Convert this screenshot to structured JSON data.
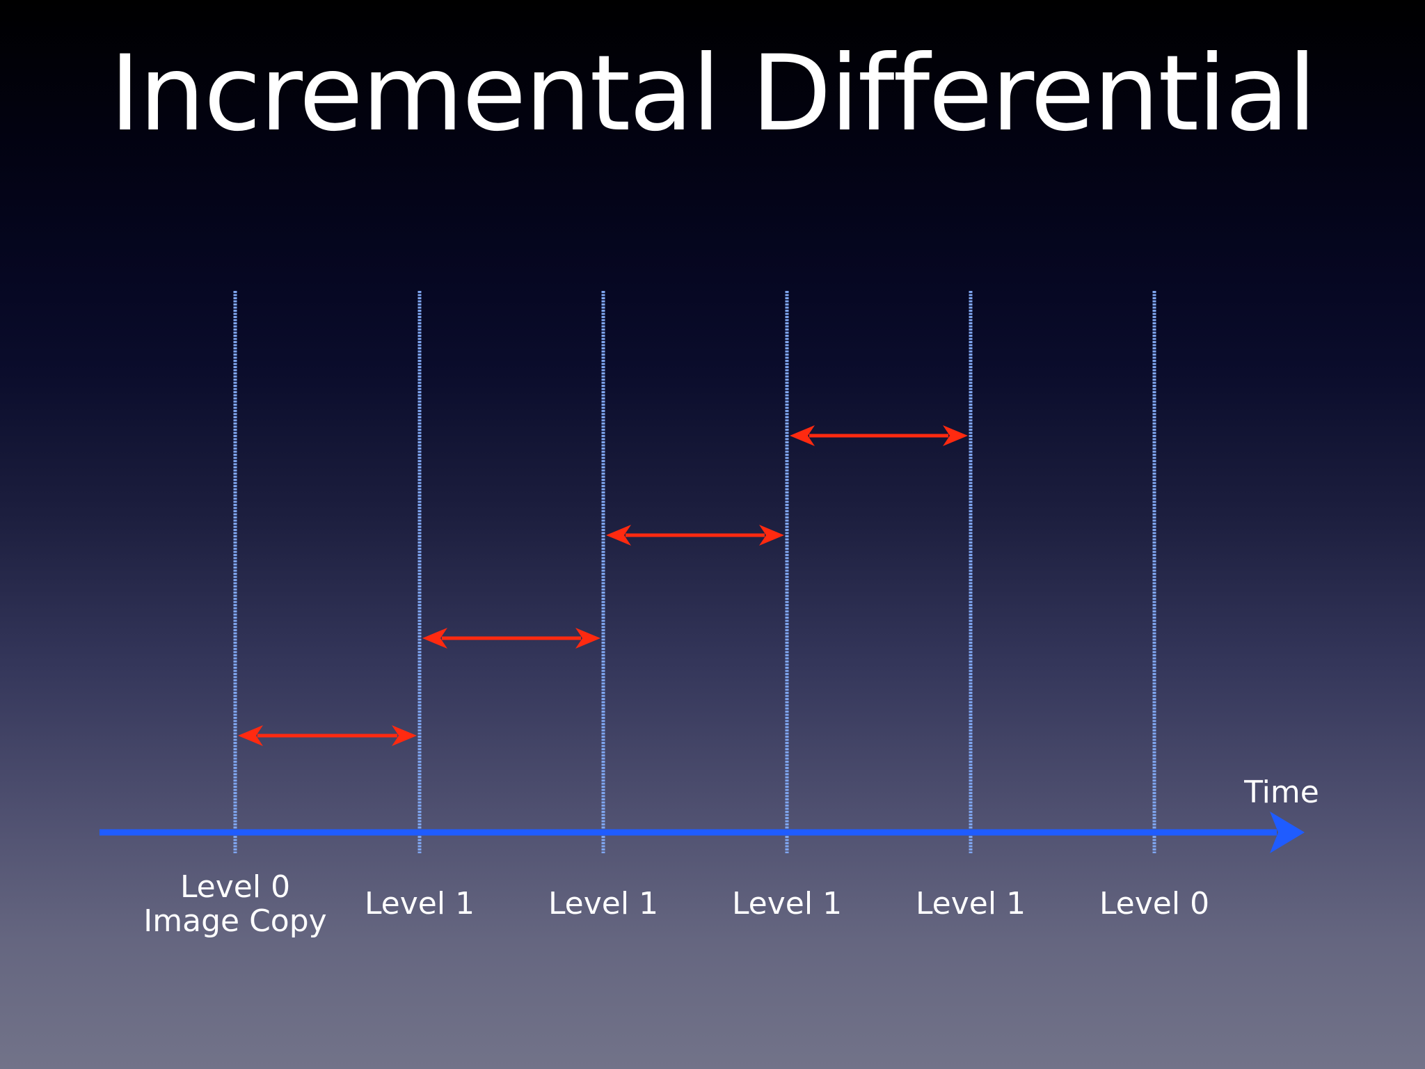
{
  "slide": {
    "title": "Incremental Differential"
  },
  "timeline": {
    "axis_label": "Time",
    "axis_color": "#1f5cff",
    "line_color": "#7fa6f0",
    "arrow_color": "#ff2a10",
    "backups": [
      {
        "label_line1": "Level 0",
        "label_line2": "Image Copy"
      },
      {
        "label_line1": "Level 1",
        "label_line2": ""
      },
      {
        "label_line1": "Level 1",
        "label_line2": ""
      },
      {
        "label_line1": "Level 1",
        "label_line2": ""
      },
      {
        "label_line1": "Level 1",
        "label_line2": ""
      },
      {
        "label_line1": "Level 0",
        "label_line2": ""
      }
    ],
    "differentials": [
      {
        "from": 0,
        "to": 1,
        "step": 1
      },
      {
        "from": 1,
        "to": 2,
        "step": 2
      },
      {
        "from": 2,
        "to": 3,
        "step": 3
      },
      {
        "from": 3,
        "to": 4,
        "step": 4
      }
    ]
  }
}
